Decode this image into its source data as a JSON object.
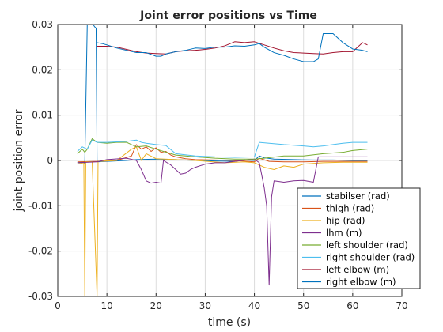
{
  "chart_data": {
    "type": "line",
    "title": "Joint error positions vs Time",
    "xlabel": "time (s)",
    "ylabel": "joint position error",
    "xlim": [
      0,
      70
    ],
    "ylim": [
      -0.03,
      0.03
    ],
    "xticks": [
      0,
      10,
      20,
      30,
      40,
      50,
      60,
      70
    ],
    "xtick_labels": [
      "0",
      "10",
      "20",
      "30",
      "40",
      "50",
      "60",
      "70"
    ],
    "yticks": [
      -0.03,
      -0.02,
      -0.01,
      0,
      0.01,
      0.02,
      0.03
    ],
    "ytick_labels": [
      "-0.03",
      "-0.02",
      "-0.01",
      "0",
      "0.01",
      "0.02",
      "0.03"
    ],
    "grid": true,
    "legend_position": "lower-right",
    "series": [
      {
        "name": "stabilser (rad)",
        "color": "#0072BD",
        "points": [
          [
            4,
            -0.0005
          ],
          [
            5,
            -0.0004
          ],
          [
            5.5,
            -0.0006
          ],
          [
            6,
            0.03
          ],
          [
            7.2,
            0.03
          ],
          [
            7.5,
            0.0295
          ],
          [
            7.8,
            0.0292
          ],
          [
            8,
            -0.0003
          ],
          [
            10,
            -0.0002
          ],
          [
            14,
            0.0
          ],
          [
            16,
            0.0002
          ],
          [
            20,
            0.0003
          ],
          [
            24,
            0.0002
          ],
          [
            28,
            0.0
          ],
          [
            32,
            -0.0001
          ],
          [
            36,
            -0.0002
          ],
          [
            38,
            0.0001
          ],
          [
            40,
            0.0
          ],
          [
            41,
            0.001
          ],
          [
            42,
            0.0006
          ],
          [
            44,
            0.0003
          ],
          [
            48,
            0.0002
          ],
          [
            52,
            0.0001
          ],
          [
            56,
            0.0001
          ],
          [
            60,
            0.0
          ],
          [
            63,
            0.0
          ]
        ]
      },
      {
        "name": "thigh (rad)",
        "color": "#D95319",
        "points": [
          [
            4,
            -0.0003
          ],
          [
            8,
            -0.0002
          ],
          [
            12,
            0.0
          ],
          [
            15,
            0.001
          ],
          [
            16,
            0.0035
          ],
          [
            17,
            0.0025
          ],
          [
            18,
            0.003
          ],
          [
            19,
            0.002
          ],
          [
            20,
            0.0028
          ],
          [
            21,
            0.0018
          ],
          [
            22,
            0.002
          ],
          [
            23,
            0.0012
          ],
          [
            24,
            0.0008
          ],
          [
            26,
            0.0004
          ],
          [
            28,
            0.0002
          ],
          [
            32,
            0.0001
          ],
          [
            36,
            0.0
          ],
          [
            40,
            -0.0003
          ],
          [
            41,
            0.0005
          ],
          [
            43,
            -0.0002
          ],
          [
            46,
            -0.0003
          ],
          [
            50,
            -0.0003
          ],
          [
            54,
            -0.0002
          ],
          [
            58,
            -0.0002
          ],
          [
            63,
            -0.0002
          ]
        ]
      },
      {
        "name": "hip (rad)",
        "color": "#EDB120",
        "points": [
          [
            4,
            -0.0008
          ],
          [
            5.3,
            -0.0005
          ],
          [
            5.5,
            -0.03
          ],
          [
            5.7,
            -0.0003
          ],
          [
            7,
            -0.0003
          ],
          [
            8,
            -0.03
          ],
          [
            8.2,
            -0.0002
          ],
          [
            12,
            0.0
          ],
          [
            15,
            0.0025
          ],
          [
            16,
            0.003
          ],
          [
            17,
            0.0
          ],
          [
            18,
            0.0015
          ],
          [
            20,
            0.0004
          ],
          [
            24,
            0.0002
          ],
          [
            28,
            0.0
          ],
          [
            34,
            -0.0005
          ],
          [
            38,
            -0.0003
          ],
          [
            40,
            -0.0005
          ],
          [
            42,
            -0.0015
          ],
          [
            44,
            -0.002
          ],
          [
            46,
            -0.0012
          ],
          [
            48,
            -0.0015
          ],
          [
            50,
            -0.0008
          ],
          [
            54,
            -0.0005
          ],
          [
            58,
            -0.0004
          ],
          [
            63,
            -0.0004
          ]
        ]
      },
      {
        "name": "lhm (m)",
        "color": "#7E2F8E",
        "points": [
          [
            4,
            -0.0005
          ],
          [
            8,
            -0.0003
          ],
          [
            10,
            0.0002
          ],
          [
            14,
            0.0005
          ],
          [
            16,
            0.0
          ],
          [
            17,
            -0.002
          ],
          [
            18,
            -0.0045
          ],
          [
            19,
            -0.005
          ],
          [
            20,
            -0.0048
          ],
          [
            21,
            -0.005
          ],
          [
            21.5,
            0.0
          ],
          [
            23,
            -0.001
          ],
          [
            24,
            -0.002
          ],
          [
            25,
            -0.003
          ],
          [
            26,
            -0.0028
          ],
          [
            27,
            -0.002
          ],
          [
            28,
            -0.0015
          ],
          [
            30,
            -0.0008
          ],
          [
            32,
            -0.0005
          ],
          [
            34,
            -0.0005
          ],
          [
            36,
            -0.0002
          ],
          [
            40,
            0.0003
          ],
          [
            41,
            -0.0005
          ],
          [
            42,
            -0.006
          ],
          [
            42.5,
            -0.01
          ],
          [
            43,
            -0.0275
          ],
          [
            43.5,
            -0.008
          ],
          [
            44,
            -0.0045
          ],
          [
            46,
            -0.0048
          ],
          [
            48,
            -0.0045
          ],
          [
            50,
            -0.0044
          ],
          [
            52,
            -0.0048
          ],
          [
            53,
            0.0008
          ],
          [
            56,
            0.0008
          ],
          [
            60,
            0.0008
          ],
          [
            63,
            0.0008
          ]
        ]
      },
      {
        "name": "left shoulder (rad)",
        "color": "#77AC30",
        "points": [
          [
            4,
            0.0015
          ],
          [
            5,
            0.0025
          ],
          [
            5.5,
            0.0018
          ],
          [
            6,
            0.0025
          ],
          [
            7,
            0.0048
          ],
          [
            8,
            0.004
          ],
          [
            10,
            0.0038
          ],
          [
            12,
            0.004
          ],
          [
            14,
            0.004
          ],
          [
            16,
            0.003
          ],
          [
            18,
            0.0032
          ],
          [
            20,
            0.0025
          ],
          [
            24,
            0.0012
          ],
          [
            28,
            0.0008
          ],
          [
            32,
            0.0005
          ],
          [
            36,
            0.0003
          ],
          [
            40,
            0.0003
          ],
          [
            42,
            0.0005
          ],
          [
            46,
            0.001
          ],
          [
            50,
            0.001
          ],
          [
            54,
            0.0015
          ],
          [
            58,
            0.0018
          ],
          [
            60,
            0.0022
          ],
          [
            63,
            0.0025
          ]
        ]
      },
      {
        "name": "right shoulder (rad)",
        "color": "#4DBEEE",
        "points": [
          [
            4,
            0.002
          ],
          [
            5,
            0.003
          ],
          [
            6,
            0.0025
          ],
          [
            7,
            0.0045
          ],
          [
            8,
            0.004
          ],
          [
            10,
            0.004
          ],
          [
            14,
            0.0042
          ],
          [
            16,
            0.0045
          ],
          [
            17,
            0.004
          ],
          [
            18,
            0.0038
          ],
          [
            20,
            0.0035
          ],
          [
            22,
            0.0033
          ],
          [
            24,
            0.0015
          ],
          [
            28,
            0.001
          ],
          [
            32,
            0.0008
          ],
          [
            36,
            0.0007
          ],
          [
            40,
            0.0008
          ],
          [
            41,
            0.004
          ],
          [
            43,
            0.0038
          ],
          [
            46,
            0.0035
          ],
          [
            50,
            0.0032
          ],
          [
            52,
            0.003
          ],
          [
            54,
            0.0032
          ],
          [
            56,
            0.0035
          ],
          [
            58,
            0.0038
          ],
          [
            60,
            0.004
          ],
          [
            63,
            0.004
          ]
        ]
      },
      {
        "name": "left elbow (m)",
        "color": "#A2142F",
        "points": [
          [
            8,
            0.0252
          ],
          [
            10,
            0.0252
          ],
          [
            12,
            0.025
          ],
          [
            14,
            0.0245
          ],
          [
            16,
            0.024
          ],
          [
            18,
            0.0237
          ],
          [
            20,
            0.0236
          ],
          [
            22,
            0.0235
          ],
          [
            24,
            0.024
          ],
          [
            26,
            0.0242
          ],
          [
            28,
            0.0243
          ],
          [
            30,
            0.0245
          ],
          [
            32,
            0.0248
          ],
          [
            34,
            0.0253
          ],
          [
            36,
            0.0262
          ],
          [
            38,
            0.026
          ],
          [
            40,
            0.0262
          ],
          [
            42,
            0.0255
          ],
          [
            44,
            0.0248
          ],
          [
            46,
            0.0242
          ],
          [
            48,
            0.0238
          ],
          [
            50,
            0.0237
          ],
          [
            52,
            0.0236
          ],
          [
            54,
            0.0235
          ],
          [
            56,
            0.0238
          ],
          [
            58,
            0.024
          ],
          [
            60,
            0.024
          ],
          [
            61,
            0.025
          ],
          [
            62,
            0.026
          ],
          [
            63,
            0.0255
          ]
        ]
      },
      {
        "name": "right elbow (m)",
        "color": "#0072BD",
        "points": [
          [
            8,
            0.026
          ],
          [
            9,
            0.0258
          ],
          [
            10,
            0.0255
          ],
          [
            12,
            0.0248
          ],
          [
            14,
            0.0243
          ],
          [
            16,
            0.0238
          ],
          [
            18,
            0.0238
          ],
          [
            20,
            0.023
          ],
          [
            21,
            0.023
          ],
          [
            22,
            0.0235
          ],
          [
            24,
            0.024
          ],
          [
            26,
            0.0243
          ],
          [
            28,
            0.0248
          ],
          [
            30,
            0.0247
          ],
          [
            32,
            0.025
          ],
          [
            34,
            0.025
          ],
          [
            36,
            0.0253
          ],
          [
            38,
            0.0252
          ],
          [
            40,
            0.0255
          ],
          [
            41,
            0.0258
          ],
          [
            42,
            0.025
          ],
          [
            44,
            0.0238
          ],
          [
            46,
            0.0232
          ],
          [
            48,
            0.0224
          ],
          [
            50,
            0.0218
          ],
          [
            52,
            0.0218
          ],
          [
            53,
            0.0224
          ],
          [
            54,
            0.028
          ],
          [
            56,
            0.028
          ],
          [
            58,
            0.026
          ],
          [
            60,
            0.0246
          ],
          [
            62,
            0.0243
          ],
          [
            63,
            0.024
          ]
        ]
      }
    ]
  }
}
